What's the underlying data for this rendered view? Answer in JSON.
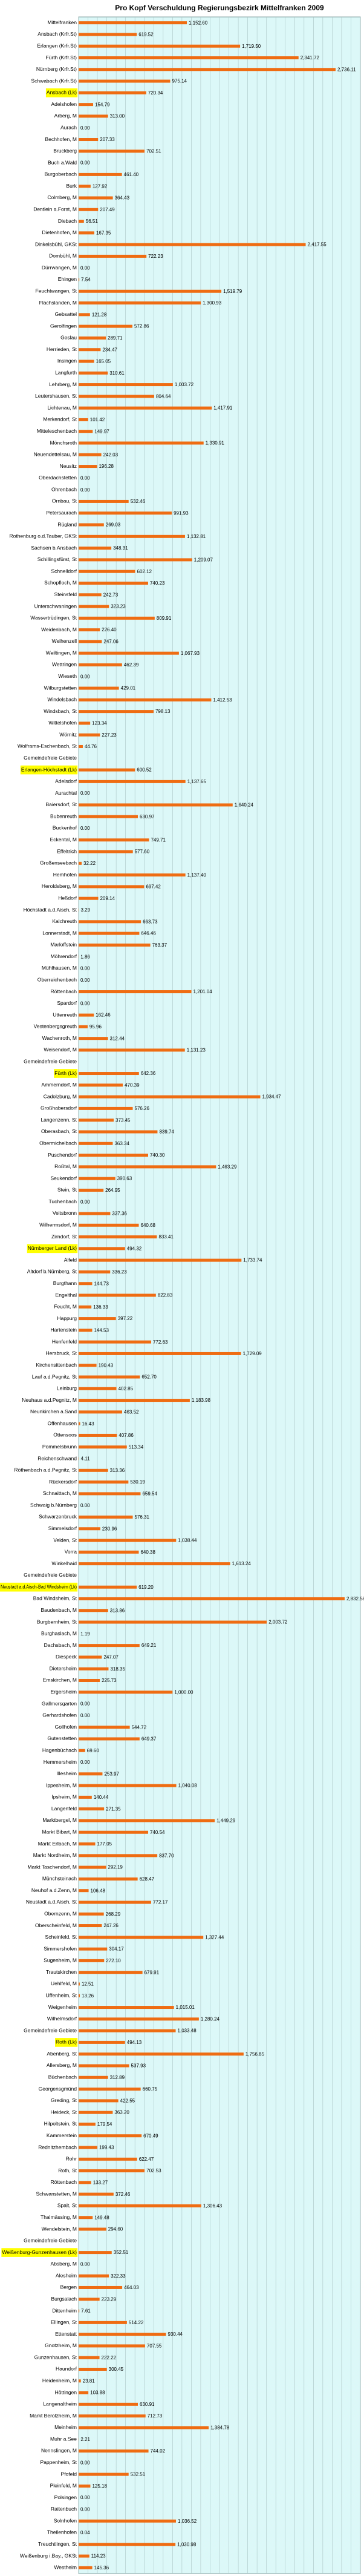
{
  "chart_data": {
    "type": "barh",
    "title": "Pro Kopf Verschuldung Regierungsbezirk Mittelfranken 2009",
    "color": "#ef6c12",
    "highlight_color": "#ffff00",
    "highlighted": [
      6,
      64,
      90,
      105,
      134,
      173,
      191
    ],
    "xlim": [
      0,
      3000
    ],
    "xticks": [
      0,
      100,
      200,
      300,
      400,
      500,
      600,
      700,
      800,
      900,
      1000,
      1100,
      1200,
      1300,
      1400,
      1500,
      1600,
      1700,
      1800,
      1900,
      2000,
      2100,
      2200,
      2300,
      2400,
      2500,
      2600,
      2700,
      2800,
      2900,
      3000
    ],
    "grid": true,
    "categories": [
      "Mittelfranken",
      "Ansbach (Krfr.St)",
      "Erlangen (Krfr.St)",
      "Fürth (Krfr.St)",
      "Nürnberg (Krfr.St)",
      "Schwabach (Krfr.St)",
      "Ansbach (Lk)",
      "Adelshofen",
      "Arberg, M",
      "Aurach",
      "Bechhofen, M",
      "Bruckberg",
      "Buch a.Wald",
      "Burgoberbach",
      "Burk",
      "Colmberg, M",
      "Dentlein a.Forst, M",
      "Diebach",
      "Dietenhofen, M",
      "Dinkelsbühl, GKSt",
      "Dombühl, M",
      "Dürrwangen, M",
      "Ehingen",
      "Feuchtwangen, St",
      "Flachslanden, M",
      "Gebsattel",
      "Gerolfingen",
      "Geslau",
      "Herrieden, St",
      "Insingen",
      "Langfurth",
      "Lehrberg, M",
      "Leutershausen, St",
      "Lichtenau, M",
      "Merkendorf, St",
      "Mitteleschenbach",
      "Mönchsroth",
      "Neuendettelsau, M",
      "Neusitz",
      "Oberdachstetten",
      "Ohrenbach",
      "Ornbau, St",
      "Petersaurach",
      "Rügland",
      "Rothenburg o.d.Tauber, GKSt",
      "Sachsen b.Ansbach",
      "Schillingsfürst, St",
      "Schnelldorf",
      "Schopfloch, M",
      "Steinsfeld",
      "Unterschwaningen",
      "Wassertrüdingen, St",
      "Weidenbach, M",
      "Weihenzell",
      "Weiltingen, M",
      "Wettringen",
      "Wieseth",
      "Wilburgstetten",
      "Windelsbach",
      "Windsbach, St",
      "Wittelshofen",
      "Wörnitz",
      "Wolframs-Eschenbach, St",
      "Gemeindefreie Gebiete",
      "Erlangen-Höchstadt (Lk)",
      "Adelsdorf",
      "Aurachtal",
      "Baiersdorf, St",
      "Bubenreuth",
      "Buckenhof",
      "Eckental, M",
      "Effeltrich",
      "Großenseebach",
      "Hemhofen",
      "Heroldsberg, M",
      "Heßdorf",
      "Höchstadt a.d.Aisch, St",
      "Kalchreuth",
      "Lonnerstadt, M",
      "Marloffstein",
      "Möhrendorf",
      "Mühlhausen, M",
      "Oberreichenbach",
      "Röttenbach",
      "Spardorf",
      "Uttenreuth",
      "Vestenbergsgreuth",
      "Wachenroth, M",
      "Weisendorf, M",
      "Gemeindefreie Gebiete",
      "Fürth (Lk)",
      "Ammerndorf, M",
      "Cadolzburg, M",
      "Großhabersdorf",
      "Langenzenn, St",
      "Oberasbach, St",
      "Obermichelbach",
      "Puschendorf",
      "Roßtal, M",
      "Seukendorf",
      "Stein, St",
      "Tuchenbach",
      "Veitsbronn",
      "Wilhermsdorf, M",
      "Zirndorf, St",
      "Nürnberger Land (Lk)",
      "Alfeld",
      "Altdorf b.Nürnberg, St",
      "Burgthann",
      "Engelthal",
      "Feucht, M",
      "Happurg",
      "Hartenstein",
      "Henfenfeld",
      "Hersbruck, St",
      "Kirchensittenbach",
      "Lauf a.d.Pegnitz, St",
      "Leinburg",
      "Neuhaus a.d.Pegnitz, M",
      "Neunkirchen a.Sand",
      "Offenhausen",
      "Ottensoos",
      "Pommelsbrunn",
      "Reichenschwand",
      "Röthenbach a.d.Pegnitz, St",
      "Rückersdorf",
      "Schnaittach, M",
      "Schwaig b.Nürnberg",
      "Schwarzenbruck",
      "Simmelsdorf",
      "Velden, St",
      "Vorra",
      "Winkelhaid",
      "Gemeindefreie Gebiete",
      "Neustadt a.d.Aisch-Bad Windsheim (Lk)",
      "Bad Windsheim, St",
      "Baudenbach, M",
      "Burgbernheim, St",
      "Burghaslach, M",
      "Dachsbach, M",
      "Diespeck",
      "Dietersheim",
      "Emskirchen, M",
      "Ergersheim",
      "Gallmersgarten",
      "Gerhardshofen",
      "Gollhofen",
      "Gutenstetten",
      "Hagenbüchach",
      "Hemmersheim",
      "Illesheim",
      "Ippesheim, M",
      "Ipsheim, M",
      "Langenfeld",
      "Marktbergel, M",
      "Markt Bibart, M",
      "Markt Erlbach, M",
      "Markt Nordheim, M",
      "Markt Taschendorf, M",
      "Münchsteinach",
      "Neuhof a.d.Zenn, M",
      "Neustadt a.d.Aisch, St",
      "Obernzenn, M",
      "Oberscheinfeld, M",
      "Scheinfeld, St",
      "Simmershofen",
      "Sugenheim, M",
      "Trautskirchen",
      "Uehlfeld, M",
      "Uffenheim, St",
      "Weigenheim",
      "Wilhelmsdorf",
      "Gemeindefreie Gebiete",
      "Roth (Lk)",
      "Abenberg, St",
      "Allersberg, M",
      "Büchenbach",
      "Georgensgmünd",
      "Greding, St",
      "Heideck, St",
      "Hilpoltstein, St",
      "Kammerstein",
      "Rednitzhembach",
      "Rohr",
      "Roth, St",
      "Röttenbach",
      "Schwanstetten, M",
      "Spalt, St",
      "Thalmässing, M",
      "Wendelstein, M",
      "Gemeindefreie Gebiete",
      "Weißenburg-Gunzenhausen (Lk)",
      "Absberg, M",
      "Alesheim",
      "Bergen",
      "Burgsalach",
      "Dittenheim",
      "Ellingen, St",
      "Ettenstatt",
      "Gnotzheim, M",
      "Gunzenhausen, St",
      "Haundorf",
      "Heidenheim, M",
      "Höttingen",
      "Langenaltheim",
      "Markt Berolzheim, M",
      "Meinheim",
      "Muhr a.See",
      "Nennslingen, M",
      "Pappenheim, St",
      "Pfofeld",
      "Pleinfeld, M",
      "Polsingen",
      "Raitenbuch",
      "Solnhofen",
      "Theilenhofen",
      "Treuchtlingen, St",
      "Weißenburg i.Bay., GKSt",
      "Westheim"
    ],
    "values": [
      1152.6,
      619.52,
      1719.5,
      2341.72,
      2736.11,
      975.14,
      720.34,
      154.79,
      313.0,
      0,
      207.33,
      702.51,
      0,
      461.4,
      127.92,
      364.43,
      207.49,
      56.51,
      167.35,
      2417.55,
      722.23,
      0,
      7.54,
      1519.79,
      1300.93,
      121.28,
      572.86,
      289.71,
      234.47,
      165.05,
      310.61,
      1003.72,
      804.64,
      1417.91,
      101.42,
      149.97,
      1330.91,
      242.03,
      196.28,
      0,
      0,
      532.46,
      991.93,
      269.03,
      1132.81,
      348.31,
      1209.07,
      602.12,
      740.23,
      242.73,
      323.23,
      809.91,
      226.4,
      247.06,
      1067.93,
      462.39,
      0,
      429.01,
      1412.53,
      798.13,
      123.34,
      227.23,
      44.76,
      null,
      600.52,
      1137.65,
      0,
      1640.24,
      630.97,
      0,
      749.71,
      577.6,
      32.22,
      1137.4,
      697.42,
      209.14,
      3.29,
      663.73,
      646.46,
      763.37,
      1.86,
      0,
      0,
      1201.04,
      0,
      162.46,
      95.96,
      312.44,
      1131.23,
      null,
      642.36,
      470.39,
      1934.47,
      576.26,
      373.45,
      839.74,
      363.34,
      740.3,
      1463.29,
      390.63,
      264.95,
      0,
      337.36,
      640.68,
      833.41,
      494.32,
      1733.74,
      336.23,
      144.73,
      822.83,
      136.33,
      397.22,
      144.53,
      772.63,
      1729.09,
      190.43,
      652.7,
      402.85,
      1183.98,
      463.52,
      16.43,
      407.86,
      513.34,
      4.11,
      313.36,
      530.19,
      659.54,
      0,
      576.31,
      230.96,
      1038.44,
      640.38,
      1613.24,
      null,
      619.2,
      2832.56,
      313.86,
      2003.72,
      1.19,
      649.21,
      247.07,
      318.35,
      225.73,
      1000.0,
      0,
      0,
      544.72,
      649.37,
      69.6,
      0,
      253.97,
      1040.08,
      140.44,
      271.35,
      1449.29,
      740.54,
      177.05,
      837.7,
      292.19,
      628.47,
      106.48,
      772.17,
      268.29,
      247.26,
      1327.44,
      304.17,
      272.1,
      679.91,
      12.51,
      13.26,
      1015.01,
      1280.24,
      1033.48,
      494.13,
      1756.85,
      537.93,
      312.89,
      660.75,
      422.55,
      363.2,
      179.54,
      670.49,
      199.43,
      622.47,
      702.53,
      133.27,
      372.46,
      1306.43,
      149.48,
      294.6,
      null,
      352.51,
      0,
      322.33,
      464.03,
      223.29,
      7.61,
      514.22,
      930.44,
      707.55,
      222.22,
      300.45,
      23.81,
      103.88,
      630.91,
      712.73,
      1384.78,
      2.21,
      744.02,
      0,
      532.51,
      125.18,
      0,
      0,
      1036.52,
      0.04,
      1030.98,
      114.23,
      145.36
    ],
    "value_labels": [
      "1,152.60",
      "619.52",
      "1,719.50",
      "2,341.72",
      "2,736.11",
      "975.14",
      "720.34",
      "154.79",
      "313.00",
      "0.00",
      "207.33",
      "702.51",
      "0.00",
      "461.40",
      "127.92",
      "364.43",
      "207.49",
      "56.51",
      "167.35",
      "2,417.55",
      "722.23",
      "0.00",
      "7.54",
      "1,519.79",
      "1,300.93",
      "121.28",
      "572.86",
      "289.71",
      "234.47",
      "165.05",
      "310.61",
      "1,003.72",
      "804.64",
      "1,417.91",
      "101.42",
      "149.97",
      "1,330.91",
      "242.03",
      "196.28",
      "0.00",
      "0.00",
      "532.46",
      "991.93",
      "269.03",
      "1,132.81",
      "348.31",
      "1,209.07",
      "602.12",
      "740.23",
      "242.73",
      "323.23",
      "809.91",
      "226.40",
      "247.06",
      "1,067.93",
      "462.39",
      "0.00",
      "429.01",
      "1,412.53",
      "798.13",
      "123.34",
      "227.23",
      "44.76",
      null,
      "600.52",
      "1,137.65",
      "0.00",
      "1,640.24",
      "630.97",
      "0.00",
      "749.71",
      "577.60",
      "32.22",
      "1,137.40",
      "697.42",
      "209.14",
      "3.29",
      "663.73",
      "646.46",
      "763.37",
      "1.86",
      "0.00",
      "0.00",
      "1,201.04",
      "0.00",
      "162.46",
      "95.96",
      "312.44",
      "1,131.23",
      null,
      "642.36",
      "470.39",
      "1,934.47",
      "576.26",
      "373.45",
      "839.74",
      "363.34",
      "740.30",
      "1,463.29",
      "390.63",
      "264.95",
      "0.00",
      "337.36",
      "640.68",
      "833.41",
      "494.32",
      "1,733.74",
      "336.23",
      "144.73",
      "822.83",
      "136.33",
      "397.22",
      "144.53",
      "772.63",
      "1,729.09",
      "190.43",
      "652.70",
      "402.85",
      "1,183.98",
      "463.52",
      "16.43",
      "407.86",
      "513.34",
      "4.11",
      "313.36",
      "530.19",
      "659.54",
      "0.00",
      "576.31",
      "230.96",
      "1,038.44",
      "640.38",
      "1,613.24",
      null,
      "619.20",
      "2,832.56",
      "313.86",
      "2,003.72",
      "1.19",
      "649.21",
      "247.07",
      "318.35",
      "225.73",
      "1,000.00",
      "0.00",
      "0.00",
      "544.72",
      "649.37",
      "69.60",
      "0.00",
      "253.97",
      "1,040.08",
      "140.44",
      "271.35",
      "1,449.29",
      "740.54",
      "177.05",
      "837.70",
      "292.19",
      "628.47",
      "106.48",
      "772.17",
      "268.29",
      "247.26",
      "1,327.44",
      "304.17",
      "272.10",
      "679.91",
      "12.51",
      "13.26",
      "1,015.01",
      "1,280.24",
      "1,033.48",
      "494.13",
      "1,756.85",
      "537.93",
      "312.89",
      "660.75",
      "422.55",
      "363.20",
      "179.54",
      "670.49",
      "199.43",
      "622.47",
      "702.53",
      "133.27",
      "372.46",
      "1,306.43",
      "149.48",
      "294.60",
      null,
      "352.51",
      "0.00",
      "322.33",
      "464.03",
      "223.29",
      "7.61",
      "514.22",
      "930.44",
      "707.55",
      "222.22",
      "300.45",
      "23.81",
      "103.88",
      "630.91",
      "712.73",
      "1,384.78",
      "2.21",
      "744.02",
      "0.00",
      "532.51",
      "125.18",
      "0.00",
      "0.00",
      "1,036.52",
      "0.04",
      "1,030.98",
      "114.23",
      "145.36"
    ]
  }
}
